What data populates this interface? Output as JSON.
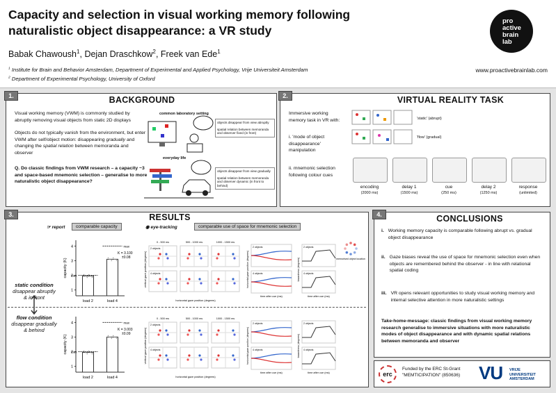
{
  "header": {
    "title": [
      "Capacity and selection in visual working memory following",
      "naturalistic object disappearance: a VR study"
    ],
    "authors": [
      {
        "name": "Babak Chawoush",
        "affiliation": "1"
      },
      {
        "name": "Dejan Draschkow",
        "affiliation": "2"
      },
      {
        "name": "Freek van Ede",
        "affiliation": "1"
      }
    ],
    "affiliations": [
      {
        "mark": "1",
        "text": "Institute for Brain and Behavior Amsterdam, Department of Experimental and Applied Psychology, Vrije Universiteit Amsterdam"
      },
      {
        "mark": "2",
        "text": "Department of Experimental Psychology, University of Oxford"
      }
    ],
    "url": "www.proactivebrainlab.com",
    "logo": [
      "pro",
      "active",
      "brain",
      "lab"
    ]
  },
  "background": {
    "number": "1.",
    "title": "BACKGROUND",
    "paragraph_1": "Visual working memory (VWM) is commonly studied by abruptly removing visual objects from static 2D displays",
    "paragraph_2": [
      "Objects do not typically vanish from the environment, but enter VWM after self/object motion: disappearing ",
      "gradually",
      " and changing the ",
      "spatial relation",
      " between memoranda and observer"
    ],
    "question": "Q. Do classic findings from VWM research – a capacity ~3 and space-based mnemonic selection – generalise to more naturalistic object disappearance?",
    "figure": {
      "lab_label": "common laboratory setting",
      "lab_notes": [
        "objects disappear from view abruptly",
        "spatial relation between memoranda and observer fixed (in front)"
      ],
      "life_label": "everyday life",
      "life_notes": [
        "objects disappear from view gradually",
        "spatial relation between memoranda and observer dynamic (in front to behind)"
      ]
    }
  },
  "vr_task": {
    "number": "2.",
    "title": "VIRTUAL REALITY TASK",
    "intro": "Immersive working memory task in VR with:",
    "items": [
      {
        "marker": "i.",
        "text": "'mode of object disappearance' manipulation"
      },
      {
        "marker": "ii.",
        "text": "mnemonic selection following colour cues"
      }
    ],
    "conditions": [
      "'static' (abrupt)",
      "'flow' (gradual)"
    ],
    "phases": [
      {
        "name": "encoding",
        "duration": "(2000 ms)"
      },
      {
        "name": "delay 1",
        "duration": "(1500 ms)"
      },
      {
        "name": "cue",
        "duration": "(250 ms)"
      },
      {
        "name": "delay 2",
        "duration": "(1250 ms)"
      },
      {
        "name": "response",
        "duration": "(unlimited)"
      }
    ]
  },
  "results": {
    "number": "3.",
    "title": "RESULTS",
    "report_label": "report",
    "report_heading": "comparable capacity",
    "eye_label": "eye-tracking",
    "eye_heading": "comparable use of space for mnemonic selection",
    "conditions": [
      {
        "title": "static condition",
        "description": [
          "disappear abruptly",
          "& in front"
        ]
      },
      {
        "title": "flow condition",
        "description": [
          "disappear gradually",
          "& behind"
        ]
      }
    ],
    "capacity_plots": [
      {
        "ylabel": "capacity (K)",
        "ylim": [
          0.6,
          4.4
        ],
        "yticks": [
          1,
          2,
          3,
          4
        ],
        "categories": [
          "load 2",
          "load 4"
        ],
        "values": [
          1.95,
          3.1
        ],
        "max_label": "max",
        "max_values": [
          2,
          4
        ],
        "stat": "K = 3.100",
        "sd": "±0.08"
      },
      {
        "ylabel": "capacity (K)",
        "ylim": [
          0.6,
          4.4
        ],
        "yticks": [
          1,
          2,
          3,
          4
        ],
        "categories": [
          "load 2",
          "load 4"
        ],
        "values": [
          1.95,
          3.003
        ],
        "max_label": "max",
        "max_values": [
          2,
          4
        ],
        "stat": "K = 3.003",
        "sd": "±0.09"
      }
    ],
    "eye_tracking": {
      "windows": [
        "0 - 500 ms",
        "500 - 1000 ms",
        "1000 - 1500 ms"
      ],
      "loads": [
        "2 objects",
        "4 objects"
      ],
      "scatter_xlabel": "horizontal gaze position (degrees)",
      "scatter_ylabel": "vertical gaze position (degrees)",
      "time_xlabel": "time after cue (ms)",
      "time_ylabel": "horizontal gaze position (degrees)",
      "towardness_ylabel": "towardness (degrees)",
      "legend": "memorised object location"
    }
  },
  "conclusions": {
    "number": "4.",
    "title": "CONCLUSIONS",
    "items": [
      {
        "marker": "i.",
        "text": "Working memory capacity is comparable following abrupt vs. gradual object disappearance"
      },
      {
        "marker": "ii.",
        "text": "Gaze biases reveal the use of space for mnemonic selection even when objects are remembered behind the observer - in line with relational spatial coding"
      },
      {
        "marker": "iii.",
        "text": "VR opens relevant opportunities to study visual working memory and internal selective attention in more naturalistic settings"
      }
    ],
    "take_home": "Take-home-message: classic findings from visual working memory research generalise to immersive situations with more naturalistic modes of object disappearance and with dynamic spatial relations between memoranda and observer"
  },
  "funding": {
    "erc": "erc",
    "lines": [
      "Funded by the ERC St-Grant",
      "\"MEMTICIPATION\" (850636)"
    ],
    "vu": "VU",
    "vu_name": [
      "VRIJE",
      "UNIVERSITEIT",
      "AMSTERDAM"
    ]
  }
}
